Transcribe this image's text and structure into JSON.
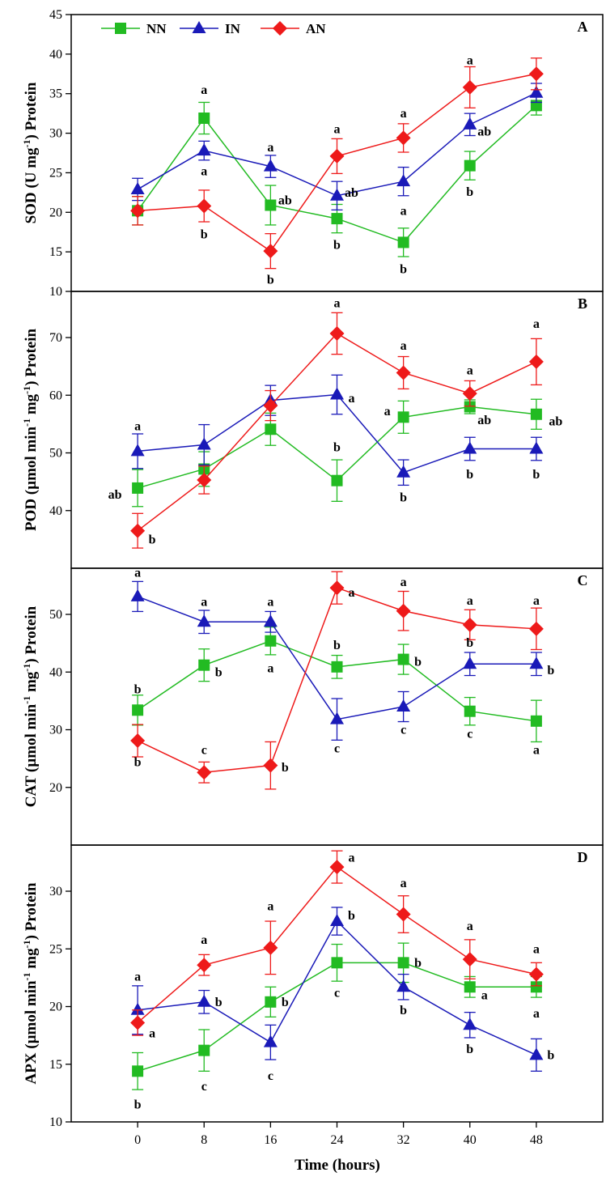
{
  "chart_data": {
    "type": "line",
    "x": [
      0,
      8,
      16,
      24,
      32,
      40,
      48
    ],
    "xlabel": "Time (hours)",
    "legend": [
      "NN",
      "IN",
      "AN"
    ],
    "colors": {
      "NN": "#22bb22",
      "IN": "#1a1ab8",
      "AN": "#ee1a1a"
    },
    "panels": [
      {
        "letter": "A",
        "ylabel": "SOD (U mg-1) Protein",
        "ylabel_main": "SOD (U mg",
        "ylabel_sup": "-1",
        "ylabel_end": ") Protein",
        "ylim": [
          10,
          45
        ],
        "yticks": [
          10,
          15,
          20,
          25,
          30,
          35,
          40,
          45
        ],
        "series": [
          {
            "name": "NN",
            "values": [
              20.2,
              31.9,
              20.9,
              19.2,
              16.2,
              25.9,
              33.5
            ],
            "err": [
              1.8,
              2.0,
              2.5,
              1.8,
              1.8,
              1.8,
              1.2
            ]
          },
          {
            "name": "IN",
            "values": [
              22.9,
              27.8,
              25.8,
              22.1,
              23.9,
              31.1,
              35.1
            ],
            "err": [
              1.4,
              1.2,
              1.4,
              1.8,
              1.8,
              1.4,
              1.2
            ]
          },
          {
            "name": "AN",
            "values": [
              20.2,
              20.8,
              15.1,
              27.1,
              29.4,
              35.8,
              37.5
            ],
            "err": [
              1.8,
              2.0,
              2.2,
              2.2,
              1.8,
              2.6,
              2.0
            ]
          }
        ],
        "labels": [
          {
            "t": "a",
            "x": 8,
            "v": 35.5
          },
          {
            "t": "a",
            "x": 8,
            "v": 25.2
          },
          {
            "t": "b",
            "x": 8,
            "v": 17.2
          },
          {
            "t": "a",
            "x": 16,
            "v": 28.2
          },
          {
            "t": "ab",
            "dx": 18,
            "x": 16,
            "v": 21.5
          },
          {
            "t": "b",
            "x": 16,
            "v": 11.5
          },
          {
            "t": "a",
            "x": 24,
            "v": 30.5
          },
          {
            "t": "ab",
            "dx": 18,
            "x": 24,
            "v": 22.5
          },
          {
            "t": "b",
            "x": 24,
            "v": 15.9
          },
          {
            "t": "a",
            "x": 32,
            "v": 32.5
          },
          {
            "t": "a",
            "x": 32,
            "v": 20.2
          },
          {
            "t": "b",
            "x": 32,
            "v": 12.8
          },
          {
            "t": "a",
            "x": 40,
            "v": 39.2
          },
          {
            "t": "ab",
            "dx": 18,
            "x": 40,
            "v": 30.2
          },
          {
            "t": "b",
            "x": 40,
            "v": 22.6
          }
        ]
      },
      {
        "letter": "B",
        "ylabel": "POD (µmol min-1 mg-1) Protein",
        "ylabel_main": "POD (µmol min",
        "ylabel_sup": "-1",
        "ylabel_mid": " mg",
        "ylabel_sup2": "-1",
        "ylabel_end": ") Protein",
        "ylim": [
          30,
          78
        ],
        "yticks": [
          40,
          50,
          60,
          70
        ],
        "series": [
          {
            "name": "NN",
            "values": [
              43.9,
              47.2,
              54.1,
              45.2,
              56.2,
              58.0,
              56.7
            ],
            "err": [
              3.2,
              3.0,
              2.8,
              3.6,
              2.8,
              1.2,
              2.6
            ]
          },
          {
            "name": "IN",
            "values": [
              50.3,
              51.4,
              59.1,
              60.1,
              46.6,
              50.7,
              50.7
            ],
            "err": [
              3.0,
              3.5,
              2.6,
              3.4,
              2.2,
              2.0,
              2.0
            ]
          },
          {
            "name": "AN",
            "values": [
              36.5,
              45.3,
              58.2,
              70.7,
              63.9,
              60.3,
              65.8
            ],
            "err": [
              3.0,
              2.4,
              2.6,
              3.6,
              2.8,
              2.2,
              4.0
            ]
          }
        ],
        "labels": [
          {
            "t": "a",
            "x": 0,
            "v": 54.6
          },
          {
            "t": "ab",
            "dx": -28,
            "x": 0,
            "v": 42.8
          },
          {
            "t": "b",
            "dx": 18,
            "x": 0,
            "v": 35.0
          },
          {
            "t": "a",
            "x": 24,
            "v": 76.0
          },
          {
            "t": "a",
            "dx": 18,
            "x": 24,
            "v": 59.5
          },
          {
            "t": "b",
            "x": 24,
            "v": 51.0
          },
          {
            "t": "a",
            "x": 32,
            "v": 68.6
          },
          {
            "t": "a",
            "dx": -20,
            "x": 32,
            "v": 57.2
          },
          {
            "t": "b",
            "x": 32,
            "v": 42.3
          },
          {
            "t": "a",
            "x": 40,
            "v": 64.3
          },
          {
            "t": "ab",
            "dx": 18,
            "x": 40,
            "v": 55.7
          },
          {
            "t": "b",
            "x": 40,
            "v": 46.3
          },
          {
            "t": "a",
            "x": 48,
            "v": 72.4
          },
          {
            "t": "ab",
            "dx": 24,
            "x": 48,
            "v": 55.5
          },
          {
            "t": "b",
            "x": 48,
            "v": 46.3
          }
        ]
      },
      {
        "letter": "C",
        "ylabel": "CAT (µmol min-1 mg-1) Protein",
        "ylabel_main": "CAT (µmol min",
        "ylabel_sup": "-1",
        "ylabel_mid": " mg",
        "ylabel_sup2": "-1",
        "ylabel_end": ") Protein",
        "ylim": [
          10,
          58
        ],
        "yticks": [
          20,
          30,
          40,
          50
        ],
        "series": [
          {
            "name": "NN",
            "values": [
              33.4,
              41.2,
              45.4,
              40.9,
              42.2,
              33.2,
              31.5
            ],
            "err": [
              2.6,
              2.8,
              2.4,
              2.0,
              2.6,
              2.4,
              3.6
            ]
          },
          {
            "name": "IN",
            "values": [
              53.1,
              48.7,
              48.7,
              31.8,
              34.0,
              41.4,
              41.4
            ],
            "err": [
              2.6,
              2.0,
              1.8,
              3.6,
              2.6,
              2.0,
              2.0
            ]
          },
          {
            "name": "AN",
            "values": [
              28.1,
              22.6,
              23.8,
              54.6,
              50.6,
              48.2,
              47.5
            ],
            "err": [
              2.8,
              1.8,
              4.1,
              2.8,
              3.4,
              2.6,
              3.6
            ]
          }
        ],
        "labels": [
          {
            "t": "a",
            "x": 0,
            "v": 57.2
          },
          {
            "t": "b",
            "x": 0,
            "v": 37.0
          },
          {
            "t": "b",
            "x": 0,
            "v": 24.4
          },
          {
            "t": "a",
            "x": 8,
            "v": 52.2
          },
          {
            "t": "b",
            "dx": 18,
            "x": 8,
            "v": 40.0
          },
          {
            "t": "c",
            "x": 8,
            "v": 26.5
          },
          {
            "t": "a",
            "x": 16,
            "v": 52.2
          },
          {
            "t": "a",
            "x": 16,
            "v": 40.7
          },
          {
            "t": "b",
            "dx": 18,
            "x": 16,
            "v": 23.5
          },
          {
            "t": "a",
            "dx": 18,
            "x": 24,
            "v": 53.8
          },
          {
            "t": "b",
            "x": 24,
            "v": 44.7
          },
          {
            "t": "c",
            "x": 24,
            "v": 26.8
          },
          {
            "t": "a",
            "x": 32,
            "v": 55.6
          },
          {
            "t": "b",
            "dx": 18,
            "x": 32,
            "v": 41.8
          },
          {
            "t": "c",
            "x": 32,
            "v": 30.0
          },
          {
            "t": "a",
            "x": 40,
            "v": 52.4
          },
          {
            "t": "b",
            "x": 40,
            "v": 45.1
          },
          {
            "t": "c",
            "x": 40,
            "v": 29.3
          },
          {
            "t": "a",
            "x": 48,
            "v": 52.4
          },
          {
            "t": "b",
            "dx": 18,
            "x": 48,
            "v": 40.3
          },
          {
            "t": "a",
            "x": 48,
            "v": 26.5
          }
        ]
      },
      {
        "letter": "D",
        "ylabel": "APX (µmol min-1 mg-1) Protein",
        "ylabel_main": "APX (µmol min",
        "ylabel_sup": "-1",
        "ylabel_mid": " mg",
        "ylabel_sup2": "-1",
        "ylabel_end": ") Protein",
        "ylim": [
          10,
          34
        ],
        "yticks": [
          10,
          15,
          20,
          25,
          30
        ],
        "series": [
          {
            "name": "NN",
            "values": [
              14.4,
              16.2,
              20.4,
              23.8,
              23.8,
              21.7,
              21.7
            ],
            "err": [
              1.6,
              1.8,
              1.3,
              1.6,
              1.7,
              0.9,
              0.9
            ]
          },
          {
            "name": "IN",
            "values": [
              19.7,
              20.4,
              16.9,
              27.4,
              21.7,
              18.4,
              15.8
            ],
            "err": [
              2.1,
              1.0,
              1.5,
              1.2,
              1.1,
              1.1,
              1.4
            ]
          },
          {
            "name": "AN",
            "values": [
              18.6,
              23.6,
              25.1,
              32.1,
              28.0,
              24.1,
              22.8
            ],
            "err": [
              1.1,
              0.9,
              2.3,
              1.4,
              1.6,
              1.7,
              1.0
            ]
          }
        ],
        "labels": [
          {
            "t": "a",
            "x": 0,
            "v": 22.6
          },
          {
            "t": "a",
            "dx": 18,
            "x": 0,
            "v": 17.7
          },
          {
            "t": "b",
            "x": 0,
            "v": 11.5
          },
          {
            "t": "a",
            "x": 8,
            "v": 25.8
          },
          {
            "t": "b",
            "dx": 18,
            "x": 8,
            "v": 20.4
          },
          {
            "t": "c",
            "x": 8,
            "v": 13.1
          },
          {
            "t": "a",
            "x": 16,
            "v": 28.7
          },
          {
            "t": "b",
            "dx": 18,
            "x": 16,
            "v": 20.4
          },
          {
            "t": "c",
            "x": 16,
            "v": 14.0
          },
          {
            "t": "a",
            "dx": 18,
            "x": 24,
            "v": 32.9
          },
          {
            "t": "b",
            "dx": 18,
            "x": 24,
            "v": 27.9
          },
          {
            "t": "c",
            "x": 24,
            "v": 21.2
          },
          {
            "t": "a",
            "x": 32,
            "v": 30.7
          },
          {
            "t": "b",
            "dx": 18,
            "x": 32,
            "v": 23.8
          },
          {
            "t": "b",
            "x": 32,
            "v": 19.7
          },
          {
            "t": "a",
            "x": 40,
            "v": 27.0
          },
          {
            "t": "a",
            "dx": 18,
            "x": 40,
            "v": 21.0
          },
          {
            "t": "b",
            "x": 40,
            "v": 16.3
          },
          {
            "t": "a",
            "x": 48,
            "v": 25.0
          },
          {
            "t": "a",
            "x": 48,
            "v": 19.4
          },
          {
            "t": "b",
            "dx": 18,
            "x": 48,
            "v": 15.8
          }
        ]
      }
    ]
  }
}
